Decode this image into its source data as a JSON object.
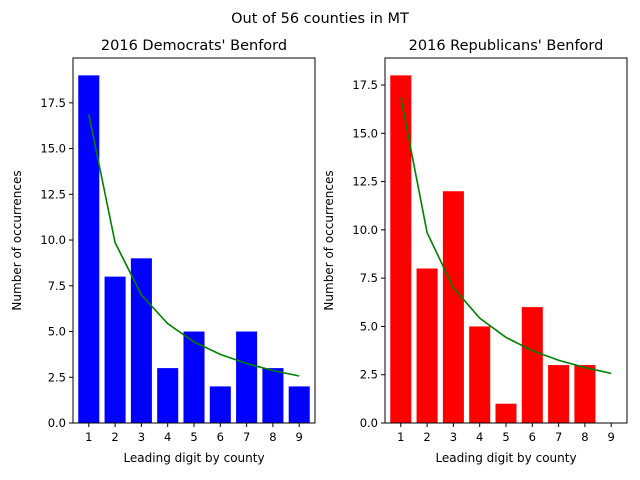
{
  "figure": {
    "suptitle": "Out of 56 counties in MT"
  },
  "chart_data": [
    {
      "type": "bar",
      "title": "2016 Democrats' Benford",
      "xlabel": "Leading digit by county",
      "ylabel": "Number of occurrences",
      "categories": [
        "1",
        "2",
        "3",
        "4",
        "5",
        "6",
        "7",
        "8",
        "9"
      ],
      "values": [
        19,
        8,
        9,
        3,
        5,
        2,
        5,
        3,
        2
      ],
      "bar_color": "#0000ff",
      "expected_line": {
        "color": "#008000",
        "values": [
          16.86,
          9.86,
          7.0,
          5.43,
          4.43,
          3.75,
          3.25,
          2.87,
          2.57
        ]
      },
      "ylim": [
        0,
        19.95
      ],
      "yticks": [
        0.0,
        2.5,
        5.0,
        7.5,
        10.0,
        12.5,
        15.0,
        17.5
      ],
      "ytick_labels": [
        "0.0",
        "2.5",
        "5.0",
        "7.5",
        "10.0",
        "12.5",
        "15.0",
        "17.5"
      ]
    },
    {
      "type": "bar",
      "title": "2016 Republicans' Benford",
      "xlabel": "Leading digit by county",
      "ylabel": "Number of occurrences",
      "categories": [
        "1",
        "2",
        "3",
        "4",
        "5",
        "6",
        "7",
        "8",
        "9"
      ],
      "values": [
        18,
        8,
        12,
        5,
        1,
        6,
        3,
        3,
        0
      ],
      "bar_color": "#ff0000",
      "expected_line": {
        "color": "#008000",
        "values": [
          16.86,
          9.86,
          7.0,
          5.43,
          4.43,
          3.75,
          3.25,
          2.87,
          2.57
        ]
      },
      "ylim": [
        0,
        18.9
      ],
      "yticks": [
        0.0,
        2.5,
        5.0,
        7.5,
        10.0,
        12.5,
        15.0,
        17.5
      ],
      "ytick_labels": [
        "0.0",
        "2.5",
        "5.0",
        "7.5",
        "10.0",
        "12.5",
        "15.0",
        "17.5"
      ]
    }
  ]
}
